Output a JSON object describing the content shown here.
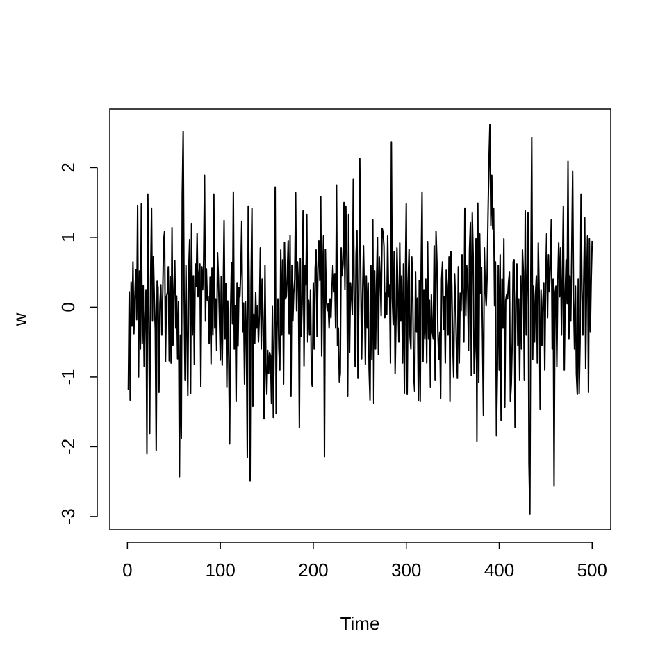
{
  "chart_data": {
    "type": "line",
    "xlabel": "Time",
    "ylabel": "w",
    "color": "#000000",
    "xlim": [
      -18.96,
      519.96
    ],
    "ylim": [
      -3.19,
      2.84
    ],
    "xticks": [
      0,
      100,
      200,
      300,
      400,
      500
    ],
    "yticks": [
      -3,
      -2,
      -1,
      0,
      1,
      2
    ],
    "x": [
      1,
      2,
      3,
      4,
      5,
      6,
      7,
      8,
      9,
      10,
      11,
      12,
      13,
      14,
      15,
      16,
      17,
      18,
      19,
      20,
      21,
      22,
      23,
      24,
      25,
      26,
      27,
      28,
      29,
      30,
      31,
      32,
      33,
      34,
      35,
      36,
      37,
      38,
      39,
      40,
      41,
      42,
      43,
      44,
      45,
      46,
      47,
      48,
      49,
      50,
      51,
      52,
      53,
      54,
      55,
      56,
      57,
      58,
      59,
      60,
      61,
      62,
      63,
      64,
      65,
      66,
      67,
      68,
      69,
      70,
      71,
      72,
      73,
      74,
      75,
      76,
      77,
      78,
      79,
      80,
      81,
      82,
      83,
      84,
      85,
      86,
      87,
      88,
      89,
      90,
      91,
      92,
      93,
      94,
      95,
      96,
      97,
      98,
      99,
      100,
      101,
      102,
      103,
      104,
      105,
      106,
      107,
      108,
      109,
      110,
      111,
      112,
      113,
      114,
      115,
      116,
      117,
      118,
      119,
      120,
      121,
      122,
      123,
      124,
      125,
      126,
      127,
      128,
      129,
      130,
      131,
      132,
      133,
      134,
      135,
      136,
      137,
      138,
      139,
      140,
      141,
      142,
      143,
      144,
      145,
      146,
      147,
      148,
      149,
      150,
      151,
      152,
      153,
      154,
      155,
      156,
      157,
      158,
      159,
      160,
      161,
      162,
      163,
      164,
      165,
      166,
      167,
      168,
      169,
      170,
      171,
      172,
      173,
      174,
      175,
      176,
      177,
      178,
      179,
      180,
      181,
      182,
      183,
      184,
      185,
      186,
      187,
      188,
      189,
      190,
      191,
      192,
      193,
      194,
      195,
      196,
      197,
      198,
      199,
      200,
      201,
      202,
      203,
      204,
      205,
      206,
      207,
      208,
      209,
      210,
      211,
      212,
      213,
      214,
      215,
      216,
      217,
      218,
      219,
      220,
      221,
      222,
      223,
      224,
      225,
      226,
      227,
      228,
      229,
      230,
      231,
      232,
      233,
      234,
      235,
      236,
      237,
      238,
      239,
      240,
      241,
      242,
      243,
      244,
      245,
      246,
      247,
      248,
      249,
      250,
      251,
      252,
      253,
      254,
      255,
      256,
      257,
      258,
      259,
      260,
      261,
      262,
      263,
      264,
      265,
      266,
      267,
      268,
      269,
      270,
      271,
      272,
      273,
      274,
      275,
      276,
      277,
      278,
      279,
      280,
      281,
      282,
      283,
      284,
      285,
      286,
      287,
      288,
      289,
      290,
      291,
      292,
      293,
      294,
      295,
      296,
      297,
      298,
      299,
      300,
      301,
      302,
      303,
      304,
      305,
      306,
      307,
      308,
      309,
      310,
      311,
      312,
      313,
      314,
      315,
      316,
      317,
      318,
      319,
      320,
      321,
      322,
      323,
      324,
      325,
      326,
      327,
      328,
      329,
      330,
      331,
      332,
      333,
      334,
      335,
      336,
      337,
      338,
      339,
      340,
      341,
      342,
      343,
      344,
      345,
      346,
      347,
      348,
      349,
      350,
      351,
      352,
      353,
      354,
      355,
      356,
      357,
      358,
      359,
      360,
      361,
      362,
      363,
      364,
      365,
      366,
      367,
      368,
      369,
      370,
      371,
      372,
      373,
      374,
      375,
      376,
      377,
      378,
      379,
      380,
      381,
      382,
      383,
      384,
      385,
      386,
      387,
      388,
      389,
      390,
      391,
      392,
      393,
      394,
      395,
      396,
      397,
      398,
      399,
      400,
      401,
      402,
      403,
      404,
      405,
      406,
      407,
      408,
      409,
      410,
      411,
      412,
      413,
      414,
      415,
      416,
      417,
      418,
      419,
      420,
      421,
      422,
      423,
      424,
      425,
      426,
      427,
      428,
      429,
      430,
      431,
      432,
      433,
      434,
      435,
      436,
      437,
      438,
      439,
      440,
      441,
      442,
      443,
      444,
      445,
      446,
      447,
      448,
      449,
      450,
      451,
      452,
      453,
      454,
      455,
      456,
      457,
      458,
      459,
      460,
      461,
      462,
      463,
      464,
      465,
      466,
      467,
      468,
      469,
      470,
      471,
      472,
      473,
      474,
      475,
      476,
      477,
      478,
      479,
      480,
      481,
      482,
      483,
      484,
      485,
      486,
      487,
      488,
      489,
      490,
      491,
      492,
      493,
      494,
      495,
      496,
      497,
      498,
      499,
      500
    ],
    "values": [
      -1.19,
      0.22,
      -1.33,
      0.36,
      -0.27,
      0.65,
      -0.38,
      0.12,
      0.54,
      -0.18,
      1.46,
      -1.0,
      0.52,
      -0.6,
      1.48,
      -0.52,
      0.31,
      -0.85,
      -0.1,
      0.25,
      -2.1,
      1.62,
      -0.12,
      -1.81,
      0.42,
      1.42,
      -0.2,
      0.73,
      0.1,
      -0.32,
      -2.05,
      0.37,
      0.28,
      -1.22,
      0.05,
      0.32,
      -0.4,
      0.18,
      0.95,
      1.09,
      -0.78,
      0.15,
      0.21,
      0.58,
      -0.77,
      0.44,
      -0.8,
      1.14,
      -0.55,
      0.23,
      0.67,
      -0.3,
      0.16,
      -0.74,
      0.08,
      -2.43,
      -0.4,
      -1.88,
      1.6,
      2.52,
      0.2,
      -1.05,
      0.6,
      -0.38,
      -1.27,
      0.55,
      0.97,
      -1.24,
      1.2,
      -0.4,
      0.45,
      -0.82,
      0.62,
      0.3,
      1.06,
      0.15,
      0.48,
      0.62,
      -1.14,
      0.58,
      0.25,
      0.65,
      1.89,
      -0.2,
      0.55,
      0.1,
      0.15,
      -0.52,
      0.43,
      -0.81,
      0.56,
      -0.4,
      1.62,
      -0.3,
      0.12,
      -0.62,
      0.78,
      0.4,
      -0.15,
      -0.76,
      0.44,
      -0.83,
      0.11,
      1.24,
      -0.45,
      0.34,
      -1.15,
      0.09,
      -0.72,
      -1.96,
      -0.06,
      0.64,
      -0.24,
      1.65,
      -0.6,
      0.02,
      -1.35,
      0.35,
      -0.56,
      0.28,
      0.15,
      0.52,
      1.23,
      -0.35,
      0.06,
      -1.1,
      0.08,
      -0.45,
      -2.15,
      1.45,
      0.3,
      -2.49,
      0.35,
      1.42,
      -1.42,
      -0.1,
      -0.52,
      0.21,
      -0.3,
      0.02,
      -0.5,
      -0.1,
      0.85,
      -0.6,
      0.4,
      -0.2,
      -1.6,
      0.6,
      -0.8,
      -1.25,
      -0.62,
      -0.95,
      -0.65,
      -0.7,
      -1.38,
      0.01,
      -1.58,
      -0.4,
      1.72,
      -1.53,
      -0.25,
      0.12,
      -0.6,
      -0.9,
      0.82,
      -0.4,
      0.68,
      -1.1,
      0.93,
      0.12,
      0.15,
      0.45,
      0.95,
      -0.38,
      1.03,
      -1.28,
      0.6,
      -0.2,
      0.22,
      0.4,
      1.64,
      -0.05,
      0.65,
      0.3,
      -1.73,
      0.7,
      -0.42,
      0.05,
      1.38,
      -0.84,
      0.6,
      0.32,
      1.33,
      -0.5,
      0.1,
      -0.4,
      0.25,
      -1.05,
      -1.14,
      0.35,
      -0.6,
      0.55,
      0.82,
      -0.42,
      0.55,
      0.95,
      0.38,
      1.58,
      -0.7,
      0.45,
      1.02,
      -2.14,
      0.83,
      0.1,
      -0.05,
      0.05,
      -0.3,
      0.12,
      -0.15,
      0.25,
      0.6,
      0.22,
      0.48,
      -0.3,
      1.75,
      -0.55,
      -0.3,
      -1.07,
      -0.95,
      0.85,
      0.45,
      0.62,
      1.5,
      0.25,
      1.45,
      0.75,
      -1.28,
      1.33,
      -0.65,
      0.35,
      0.18,
      -0.1,
      1.83,
      0.2,
      -0.85,
      0.76,
      1.1,
      -1.02,
      0.22,
      2.13,
      0.45,
      -0.74,
      0.18,
      0.88,
      0.16,
      -0.82,
      0.45,
      -0.3,
      0.35,
      -0.9,
      -1.33,
      0.6,
      -0.75,
      1.25,
      -1.38,
      0.52,
      -0.6,
      0.35,
      1.0,
      -0.68,
      0.72,
      0.42,
      -0.12,
      1.13,
      1.08,
      0.87,
      -0.15,
      0.2,
      -0.1,
      1.02,
      0.15,
      0.32,
      -0.8,
      2.37,
      0.12,
      -0.25,
      0.8,
      -0.95,
      -0.15,
      0.85,
      0.21,
      -0.5,
      0.92,
      -0.2,
      0.45,
      -0.8,
      0.62,
      -1.23,
      0.42,
      1.48,
      -1.25,
      0.35,
      0.83,
      -0.42,
      -0.6,
      0.72,
      0.15,
      -0.98,
      -1.2,
      0.5,
      -0.35,
      0.13,
      -1.34,
      0.38,
      -1.35,
      0.6,
      1.65,
      -0.78,
      0.25,
      -0.45,
      0.4,
      -0.8,
      0.94,
      -0.45,
      0.1,
      -1.15,
      0.18,
      -0.35,
      -0.45,
      0.88,
      -1.05,
      1.09,
      0.65,
      -0.35,
      -0.75,
      -0.36,
      -1.3,
      0.4,
      0.65,
      -0.32,
      0.15,
      -0.8,
      0.53,
      0.32,
      -0.4,
      0.72,
      -1.35,
      0.8,
      0.3,
      -0.55,
      -1.0,
      0.48,
      0.1,
      -0.6,
      -1.02,
      0.58,
      -0.8,
      0.2,
      -0.05,
      0.75,
      0.15,
      -0.5,
      1.42,
      -0.12,
      0.6,
      0.35,
      -0.62,
      0.82,
      1.21,
      -0.98,
      1.35,
      0.72,
      -0.95,
      -0.6,
      0.98,
      -1.92,
      1.49,
      -1.08,
      1.05,
      0.2,
      0.57,
      -0.42,
      -1.55,
      0.85,
      0.25,
      0.02,
      0.45,
      1.35,
      2.11,
      2.62,
      1.17,
      1.89,
      1.12,
      1.42,
      0.02,
      0.65,
      -1.84,
      -0.95,
      0.6,
      -0.9,
      0.75,
      -1.62,
      0.4,
      -0.3,
      0.98,
      -1.43,
      0.1,
      0.18,
      0.12,
      0.35,
      0.5,
      -1.35,
      -1.1,
      -0.5,
      0.65,
      0.68,
      -1.72,
      0.1,
      0.62,
      -0.55,
      0.12,
      -1.05,
      0.45,
      -0.6,
      0.82,
      0.5,
      -1.05,
      1.38,
      -0.4,
      0.4,
      1.35,
      -2.24,
      -2.97,
      0.48,
      2.43,
      -0.75,
      0.3,
      -0.5,
      0.18,
      0.45,
      -0.8,
      0.92,
      0.2,
      -1.46,
      0.25,
      -0.55,
      0.1,
      0.35,
      -0.9,
      0.4,
      1.05,
      -0.15,
      0.75,
      0.22,
      0.6,
      1.25,
      -0.6,
      0.4,
      -2.56,
      0.2,
      0.3,
      -0.85,
      0.35,
      0.92,
      0.15,
      0.85,
      -0.4,
      0.48,
      1.45,
      -0.9,
      0.2,
      0.68,
      0.05,
      2.09,
      -0.45,
      0.45,
      -0.2,
      0.78,
      1.95,
      0.08,
      -0.6,
      0.3,
      -0.95,
      -1.25,
      0.4,
      -1.24,
      -0.5,
      1.62,
      0.25,
      -0.4,
      0.45,
      1.28,
      -0.88,
      0.32,
      1.02,
      -1.22,
      0.98,
      -0.35,
      0.42,
      0.95
    ]
  }
}
